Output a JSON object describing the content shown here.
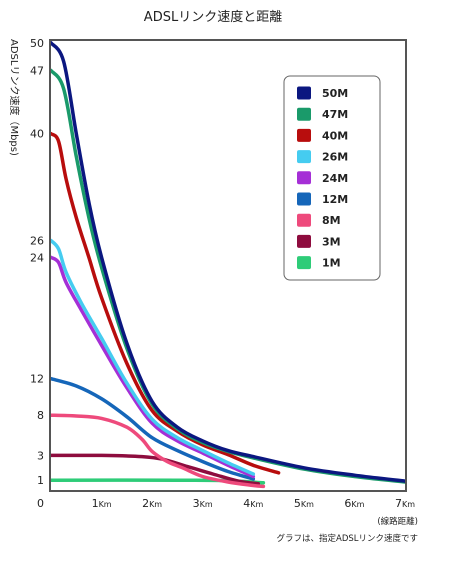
{
  "chart_data": {
    "type": "line",
    "title": "ADSLリンク速度と距離",
    "ylabel": "ADSLリンク速度（Mbps)",
    "xlabel": "(線路距離)",
    "note": "グラフは、指定ADSLリンク速度です",
    "x_unit": "Km",
    "xlim": [
      0,
      7
    ],
    "ylim": [
      0,
      53
    ],
    "y_ticks": [
      "50",
      "47",
      "40",
      "26",
      "24",
      "12",
      "8",
      "3",
      "1",
      "0"
    ],
    "x_ticks": [
      "1",
      "2",
      "3",
      "4",
      "5",
      "6",
      "7"
    ],
    "grid": false,
    "legend_position": "top-right",
    "series": [
      {
        "name": "50M",
        "color": "#0b1780",
        "x": [
          0,
          0.25,
          0.5,
          0.75,
          1.0,
          1.5,
          2.0,
          2.5,
          3.0,
          3.5,
          4.0,
          5.0,
          6.0,
          7.0
        ],
        "y": [
          50,
          48,
          40,
          31,
          24,
          15.5,
          9.5,
          6.5,
          4.8,
          3.6,
          2.9,
          2.0,
          1.4,
          0.9
        ]
      },
      {
        "name": "47M",
        "color": "#1a9a6a",
        "x": [
          0,
          0.25,
          0.5,
          0.75,
          1.0,
          1.5,
          2.0,
          2.5,
          3.0,
          3.5,
          4.0,
          5.0,
          6.0,
          7.0
        ],
        "y": [
          47,
          45,
          37,
          29,
          23,
          15,
          9.2,
          6.3,
          4.6,
          3.5,
          2.8,
          1.9,
          1.3,
          0.8
        ]
      },
      {
        "name": "40M",
        "color": "#b80d0d",
        "x": [
          0,
          0.15,
          0.3,
          0.5,
          0.75,
          1.0,
          1.5,
          2.0,
          2.5,
          3.0,
          3.5,
          4.0,
          4.5
        ],
        "y": [
          40,
          39,
          34,
          29,
          24,
          20,
          13.5,
          8.5,
          6,
          4.3,
          3.1,
          2.2,
          1.6
        ]
      },
      {
        "name": "26M",
        "color": "#45ccf0",
        "x": [
          0,
          0.15,
          0.3,
          0.6,
          1.0,
          1.5,
          2.0,
          2.5,
          3.0,
          3.5,
          4.0
        ],
        "y": [
          26,
          25,
          22.5,
          19.5,
          16,
          11.5,
          7.5,
          5.2,
          3.6,
          2.4,
          1.5
        ]
      },
      {
        "name": "24M",
        "color": "#a52fd6",
        "x": [
          0,
          0.15,
          0.3,
          0.6,
          1.0,
          1.5,
          2.0,
          2.5,
          3.0,
          3.5,
          4.0
        ],
        "y": [
          24,
          23.5,
          21.5,
          18.8,
          15.3,
          11,
          7,
          4.8,
          3.3,
          2.2,
          1.3
        ]
      },
      {
        "name": "12M",
        "color": "#1566b9",
        "x": [
          0,
          0.5,
          1.0,
          1.5,
          2.0,
          2.5,
          3.0,
          3.5,
          4.0
        ],
        "y": [
          12,
          11.2,
          9.8,
          7.8,
          5.2,
          3.6,
          2.5,
          1.7,
          1.1
        ]
      },
      {
        "name": "8M",
        "color": "#ee4a7c",
        "x": [
          0,
          0.5,
          1.0,
          1.5,
          1.8,
          2.0,
          2.3,
          2.6,
          3.0,
          3.5,
          4.0,
          4.2
        ],
        "y": [
          8,
          7.9,
          7.6,
          6.5,
          5.0,
          3.5,
          2.5,
          2.0,
          1.3,
          0.8,
          0.4,
          0.3
        ]
      },
      {
        "name": "3M",
        "color": "#8e0c3e",
        "x": [
          0,
          1.0,
          1.8,
          2.2,
          2.7,
          3.2,
          3.7,
          4.1
        ],
        "y": [
          3,
          3,
          2.9,
          2.7,
          2.1,
          1.5,
          0.9,
          0.6
        ]
      },
      {
        "name": "1M",
        "color": "#2ecc78",
        "x": [
          0,
          2.5,
          3.5,
          4.2
        ],
        "y": [
          1,
          1,
          0.95,
          0.7
        ]
      }
    ]
  }
}
